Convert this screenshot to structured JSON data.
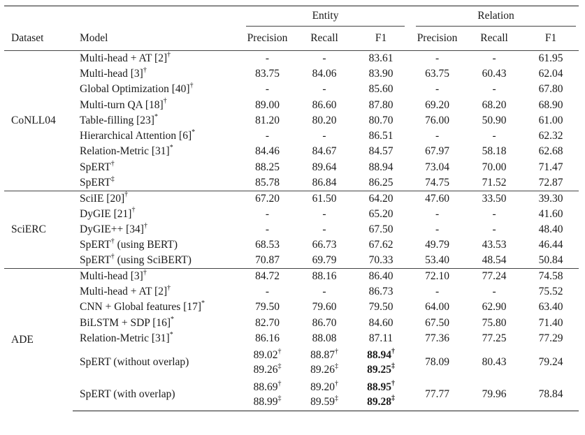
{
  "header": {
    "group_entity": "Entity",
    "group_relation": "Relation",
    "dataset": "Dataset",
    "model": "Model",
    "precision": "Precision",
    "recall": "Recall",
    "f1": "F1"
  },
  "marks": {
    "dagger": "†",
    "ddagger": "‡",
    "star": "*"
  },
  "sections": [
    {
      "dataset": "CoNLL04",
      "rows": [
        {
          "model": "Multi-head + AT [2]",
          "mark": "†",
          "ep": "-",
          "er": "-",
          "ef": "83.61",
          "rp": "-",
          "rr": "-",
          "rf": "61.95"
        },
        {
          "model": "Multi-head [3]",
          "mark": "†",
          "ep": "83.75",
          "er": "84.06",
          "ef": "83.90",
          "rp": "63.75",
          "rr": "60.43",
          "rf": "62.04"
        },
        {
          "model": "Global Optimization [40]",
          "mark": "†",
          "ep": "-",
          "er": "-",
          "ef": "85.60",
          "rp": "-",
          "rr": "-",
          "rf": "67.80"
        },
        {
          "model": "Multi-turn QA [18]",
          "mark": "†",
          "ep": "89.00",
          "er": "86.60",
          "ef": "87.80",
          "rp": "69.20",
          "rr": "68.20",
          "rf": "68.90"
        },
        {
          "model": "Table-filling [23]",
          "mark": "*",
          "ep": "81.20",
          "er": "80.20",
          "ef": "80.70",
          "rp": "76.00",
          "rr": "50.90",
          "rf": "61.00"
        },
        {
          "model": "Hierarchical Attention [6]",
          "mark": "*",
          "ep": "-",
          "er": "-",
          "ef": "86.51",
          "rp": "-",
          "rr": "-",
          "rf": "62.32"
        },
        {
          "model": "Relation-Metric [31]",
          "mark": "*",
          "ep": "84.46",
          "er": "84.67",
          "ef": "84.57",
          "rp": "67.97",
          "rr": "58.18",
          "rf": "62.68"
        },
        {
          "model": "SpERT",
          "mark": "†",
          "ep": "88.25",
          "er": "89.64",
          "ef": "88.94",
          "rp": "73.04",
          "rr": "70.00",
          "rf": "71.47",
          "bold_ef": true,
          "bold_rf": true
        },
        {
          "model": "SpERT",
          "mark": "‡",
          "ep": "85.78",
          "er": "86.84",
          "ef": "86.25",
          "rp": "74.75",
          "rr": "71.52",
          "rf": "72.87",
          "bold_ef": true,
          "bold_rf": true
        }
      ]
    },
    {
      "dataset": "SciERC",
      "rows": [
        {
          "model": "SciIE [20]",
          "mark": "†",
          "ep": "67.20",
          "er": "61.50",
          "ef": "64.20",
          "rp": "47.60",
          "rr": "33.50",
          "rf": "39.30"
        },
        {
          "model": "DyGIE [21]",
          "mark": "†",
          "ep": "-",
          "er": "-",
          "ef": "65.20",
          "rp": "-",
          "rr": "-",
          "rf": "41.60"
        },
        {
          "model": "DyGIE++ [34]",
          "mark": "†",
          "ep": "-",
          "er": "-",
          "ef": "67.50",
          "rp": "-",
          "rr": "-",
          "rf": "48.40"
        },
        {
          "model": "SpERT",
          "mark": "†",
          "suffix": " (using BERT)",
          "ep": "68.53",
          "er": "66.73",
          "ef": "67.62",
          "rp": "49.79",
          "rr": "43.53",
          "rf": "46.44"
        },
        {
          "model": "SpERT",
          "mark": "†",
          "suffix": " (using SciBERT)",
          "ep": "70.87",
          "er": "69.79",
          "ef": "70.33",
          "rp": "53.40",
          "rr": "48.54",
          "rf": "50.84",
          "bold_ef": true,
          "bold_rf": true
        }
      ]
    },
    {
      "dataset": "ADE",
      "rows": [
        {
          "model": "Multi-head [3]",
          "mark": "†",
          "ep": "84.72",
          "er": "88.16",
          "ef": "86.40",
          "rp": "72.10",
          "rr": "77.24",
          "rf": "74.58"
        },
        {
          "model": "Multi-head + AT [2]",
          "mark": "†",
          "ep": "-",
          "er": "-",
          "ef": "86.73",
          "rp": "-",
          "rr": "-",
          "rf": "75.52"
        },
        {
          "model": "CNN + Global features [17]",
          "mark": "*",
          "ep": "79.50",
          "er": "79.60",
          "ef": "79.50",
          "rp": "64.00",
          "rr": "62.90",
          "rf": "63.40"
        },
        {
          "model": "BiLSTM + SDP [16]",
          "mark": "*",
          "ep": "82.70",
          "er": "86.70",
          "ef": "84.60",
          "rp": "67.50",
          "rr": "75.80",
          "rf": "71.40"
        },
        {
          "model": "Relation-Metric [31]",
          "mark": "*",
          "ep": "86.16",
          "er": "88.08",
          "ef": "87.11",
          "rp": "77.36",
          "rr": "77.25",
          "rf": "77.29"
        },
        {
          "model": "SpERT (without overlap)",
          "ep1": "89.02",
          "ep2": "89.26",
          "er1": "88.87",
          "er2": "89.26",
          "ef1": "88.94",
          "ef2": "89.25",
          "rp": "78.09",
          "rr": "80.43",
          "rf": "79.24"
        },
        {
          "model": "SpERT (with overlap)",
          "ep1": "88.69",
          "ep2": "88.99",
          "er1": "89.20",
          "er2": "89.59",
          "ef1": "88.95",
          "ef2": "89.28",
          "rp": "77.77",
          "rr": "79.96",
          "rf": "78.84"
        }
      ]
    }
  ]
}
